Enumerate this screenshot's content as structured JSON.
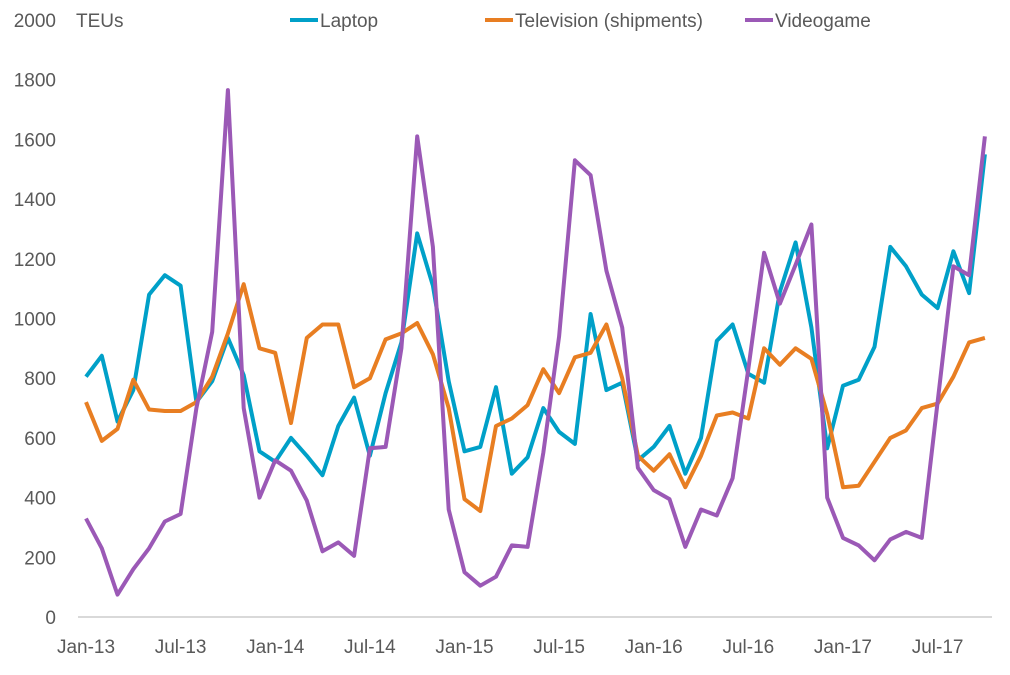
{
  "chart_data": {
    "type": "line",
    "title": "",
    "ylabel": "TEUs",
    "xlabel": "",
    "ylim": [
      0,
      2000
    ],
    "yticks": [
      "0",
      "200",
      "400",
      "600",
      "800",
      "1000",
      "1200",
      "1400",
      "1600",
      "1800",
      "2000"
    ],
    "xtick_labels": [
      "Jan-13",
      "Jul-13",
      "Jan-14",
      "Jul-14",
      "Jan-15",
      "Jul-15",
      "Jan-16",
      "Jul-16",
      "Jan-17",
      "Jul-17"
    ],
    "x_start": "Jan-13",
    "x_end": "Oct-17",
    "legend_position": "top",
    "grid": false,
    "series": [
      {
        "name": "Laptop",
        "color": "#00A0C8",
        "values": [
          805,
          875,
          655,
          760,
          1080,
          1145,
          1110,
          720,
          790,
          935,
          810,
          555,
          520,
          600,
          540,
          475,
          640,
          735,
          540,
          750,
          920,
          1285,
          1110,
          790,
          555,
          570,
          770,
          480,
          535,
          700,
          620,
          580,
          1015,
          760,
          785,
          525,
          570,
          640,
          480,
          600,
          925,
          980,
          815,
          785,
          1090,
          1255,
          970,
          565,
          775,
          795,
          905,
          1240,
          1175,
          1080,
          1035,
          1225,
          1085,
          1550
        ]
      },
      {
        "name": "Television (shipments)",
        "color": "#E87E22",
        "values": [
          720,
          590,
          630,
          795,
          695,
          690,
          690,
          720,
          805,
          950,
          1115,
          900,
          885,
          650,
          935,
          980,
          980,
          770,
          800,
          930,
          950,
          985,
          880,
          700,
          395,
          355,
          640,
          665,
          710,
          830,
          750,
          870,
          885,
          980,
          800,
          540,
          490,
          545,
          435,
          540,
          675,
          685,
          665,
          900,
          845,
          900,
          865,
          680,
          435,
          440,
          520,
          600,
          625,
          700,
          715,
          805,
          920,
          935
        ]
      },
      {
        "name": "Videogame",
        "color": "#9B59B6",
        "values": [
          330,
          230,
          75,
          160,
          230,
          320,
          345,
          700,
          955,
          1765,
          700,
          400,
          525,
          490,
          390,
          220,
          250,
          205,
          565,
          570,
          900,
          1610,
          1240,
          360,
          150,
          105,
          135,
          240,
          235,
          550,
          940,
          1530,
          1480,
          1160,
          970,
          500,
          425,
          395,
          235,
          360,
          340,
          465,
          830,
          1220,
          1050,
          1180,
          1315,
          400,
          265,
          240,
          190,
          260,
          285,
          265,
          720,
          1175,
          1145,
          1610
        ]
      }
    ]
  }
}
